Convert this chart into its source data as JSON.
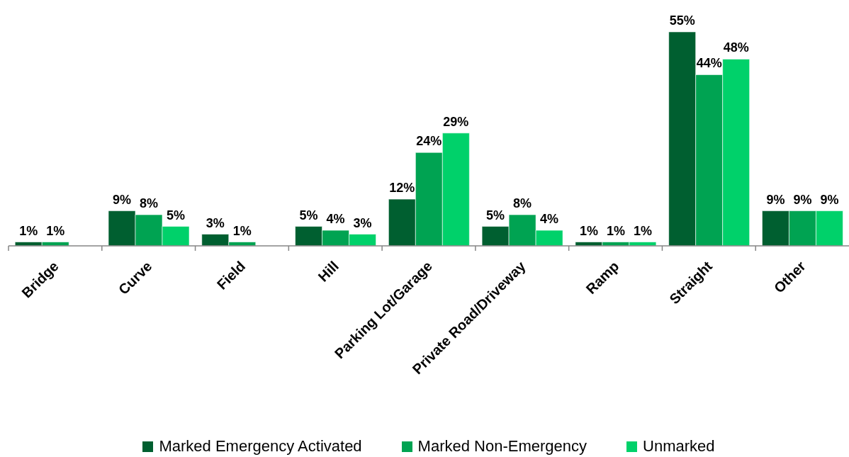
{
  "chart_data": {
    "type": "bar",
    "categories": [
      "Bridge",
      "Curve",
      "Field",
      "Hill",
      "Parking Lot/Garage",
      "Private Road/Driveway",
      "Ramp",
      "Straight",
      "Other"
    ],
    "series": [
      {
        "name": "Marked Emergency Activated",
        "color": "#005f30",
        "values": [
          1,
          9,
          3,
          5,
          12,
          5,
          1,
          55,
          9
        ],
        "value_labels": [
          "1%",
          "9%",
          "3%",
          "5%",
          "12%",
          "5%",
          "1%",
          "55%",
          "9%"
        ]
      },
      {
        "name": "Marked Non-Emergency",
        "color": "#00a352",
        "values": [
          1,
          8,
          1,
          4,
          24,
          8,
          1,
          44,
          9
        ],
        "value_labels": [
          "1%",
          "8%",
          "1%",
          "4%",
          "24%",
          "8%",
          "1%",
          "44%",
          "9%"
        ]
      },
      {
        "name": "Unmarked",
        "color": "#00d16a",
        "values": [
          null,
          5,
          null,
          3,
          29,
          4,
          1,
          48,
          9
        ],
        "value_labels": [
          null,
          "5%",
          null,
          "3%",
          "29%",
          "4%",
          "1%",
          "48%",
          "9%"
        ]
      }
    ],
    "tick_labels": "x",
    "legend": "bottom"
  }
}
